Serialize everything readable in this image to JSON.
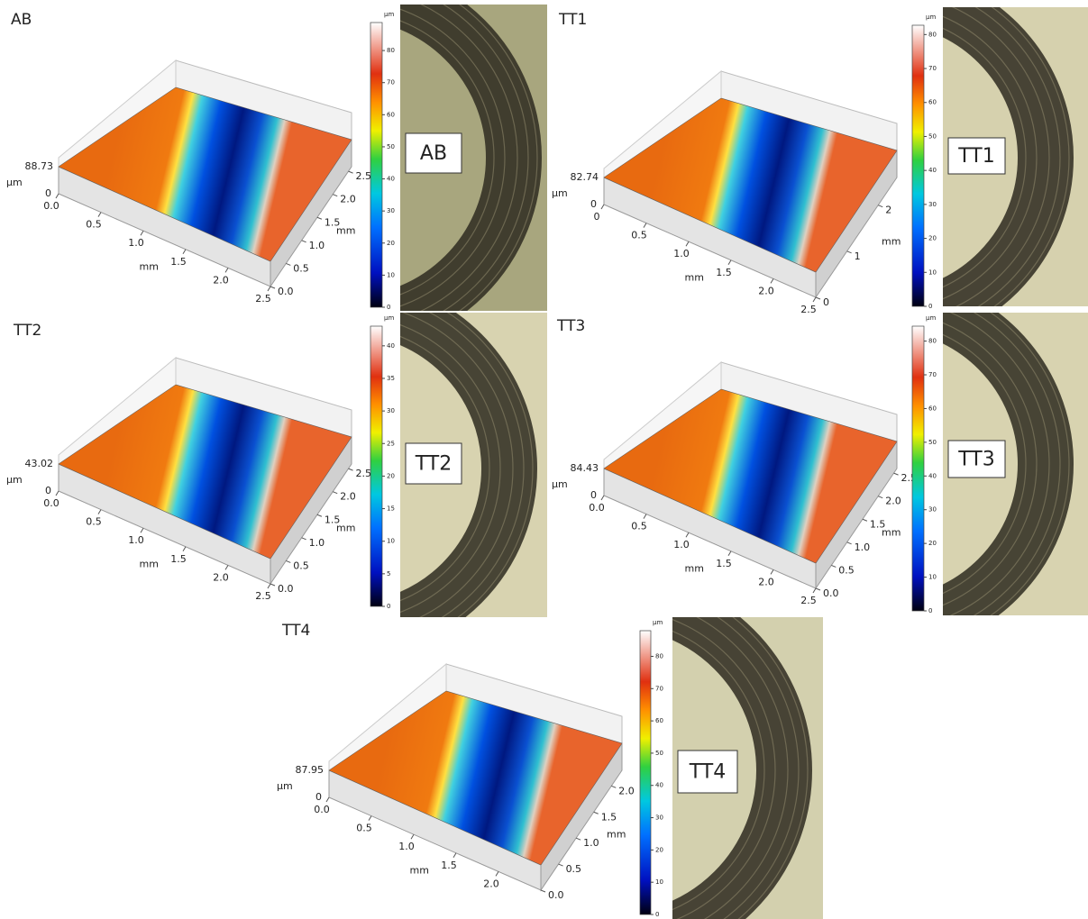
{
  "panels": [
    {
      "label": "AB",
      "box_label": "AB",
      "z_max": "88.73",
      "z_unit": "µm",
      "z_zero": "0",
      "x_ticks": [
        "0.0",
        "0.5",
        "1.0",
        "1.5",
        "2.0",
        "2.5"
      ],
      "x_unit": "mm",
      "y_ticks": [
        "0.0",
        "0.5",
        "1.0",
        "1.5",
        "2.0",
        "2.5"
      ],
      "y_unit": "mm",
      "colorbar_unit": "µm",
      "colorbar_ticks": [
        0,
        10,
        20,
        30,
        40,
        50,
        60,
        70,
        80
      ]
    },
    {
      "label": "TT1",
      "box_label": "TT1",
      "z_max": "82.74",
      "z_unit": "µm",
      "z_zero": "0",
      "x_ticks": [
        "0",
        "0.5",
        "1.0",
        "1.5",
        "2.0",
        "2.5"
      ],
      "x_unit": "mm",
      "y_ticks": [
        "0",
        "1",
        "2"
      ],
      "y_unit": "mm",
      "colorbar_unit": "µm",
      "colorbar_ticks": [
        0,
        10,
        20,
        30,
        40,
        50,
        60,
        70,
        80
      ]
    },
    {
      "label": "TT2",
      "box_label": "TT2",
      "z_max": "43.02",
      "z_unit": "µm",
      "z_zero": "0",
      "x_ticks": [
        "0.0",
        "0.5",
        "1.0",
        "1.5",
        "2.0",
        "2.5"
      ],
      "x_unit": "mm",
      "y_ticks": [
        "0.0",
        "0.5",
        "1.0",
        "1.5",
        "2.0",
        "2.5"
      ],
      "y_unit": "mm",
      "colorbar_unit": "µm",
      "colorbar_ticks": [
        0,
        5,
        10,
        15,
        20,
        25,
        30,
        35,
        40
      ]
    },
    {
      "label": "TT3",
      "box_label": "TT3",
      "z_max": "84.43",
      "z_unit": "µm",
      "z_zero": "0",
      "x_ticks": [
        "0.0",
        "0.5",
        "1.0",
        "1.5",
        "2.0",
        "2.5"
      ],
      "x_unit": "mm",
      "y_ticks": [
        "0.0",
        "0.5",
        "1.0",
        "1.5",
        "2.0",
        "2.5"
      ],
      "y_unit": "mm",
      "colorbar_unit": "µm",
      "colorbar_ticks": [
        0,
        10,
        20,
        30,
        40,
        50,
        60,
        70,
        80
      ]
    },
    {
      "label": "TT4",
      "box_label": "TT4",
      "z_max": "87.95",
      "z_unit": "µm",
      "z_zero": "0",
      "x_ticks": [
        "0.0",
        "0.5",
        "1.0",
        "1.5",
        "2.0"
      ],
      "x_unit": "mm",
      "y_ticks": [
        "0.0",
        "0.5",
        "1.0",
        "1.5",
        "2.0"
      ],
      "y_unit": "mm",
      "colorbar_unit": "µm",
      "colorbar_ticks": [
        0,
        10,
        20,
        30,
        40,
        50,
        60,
        70,
        80
      ]
    }
  ]
}
